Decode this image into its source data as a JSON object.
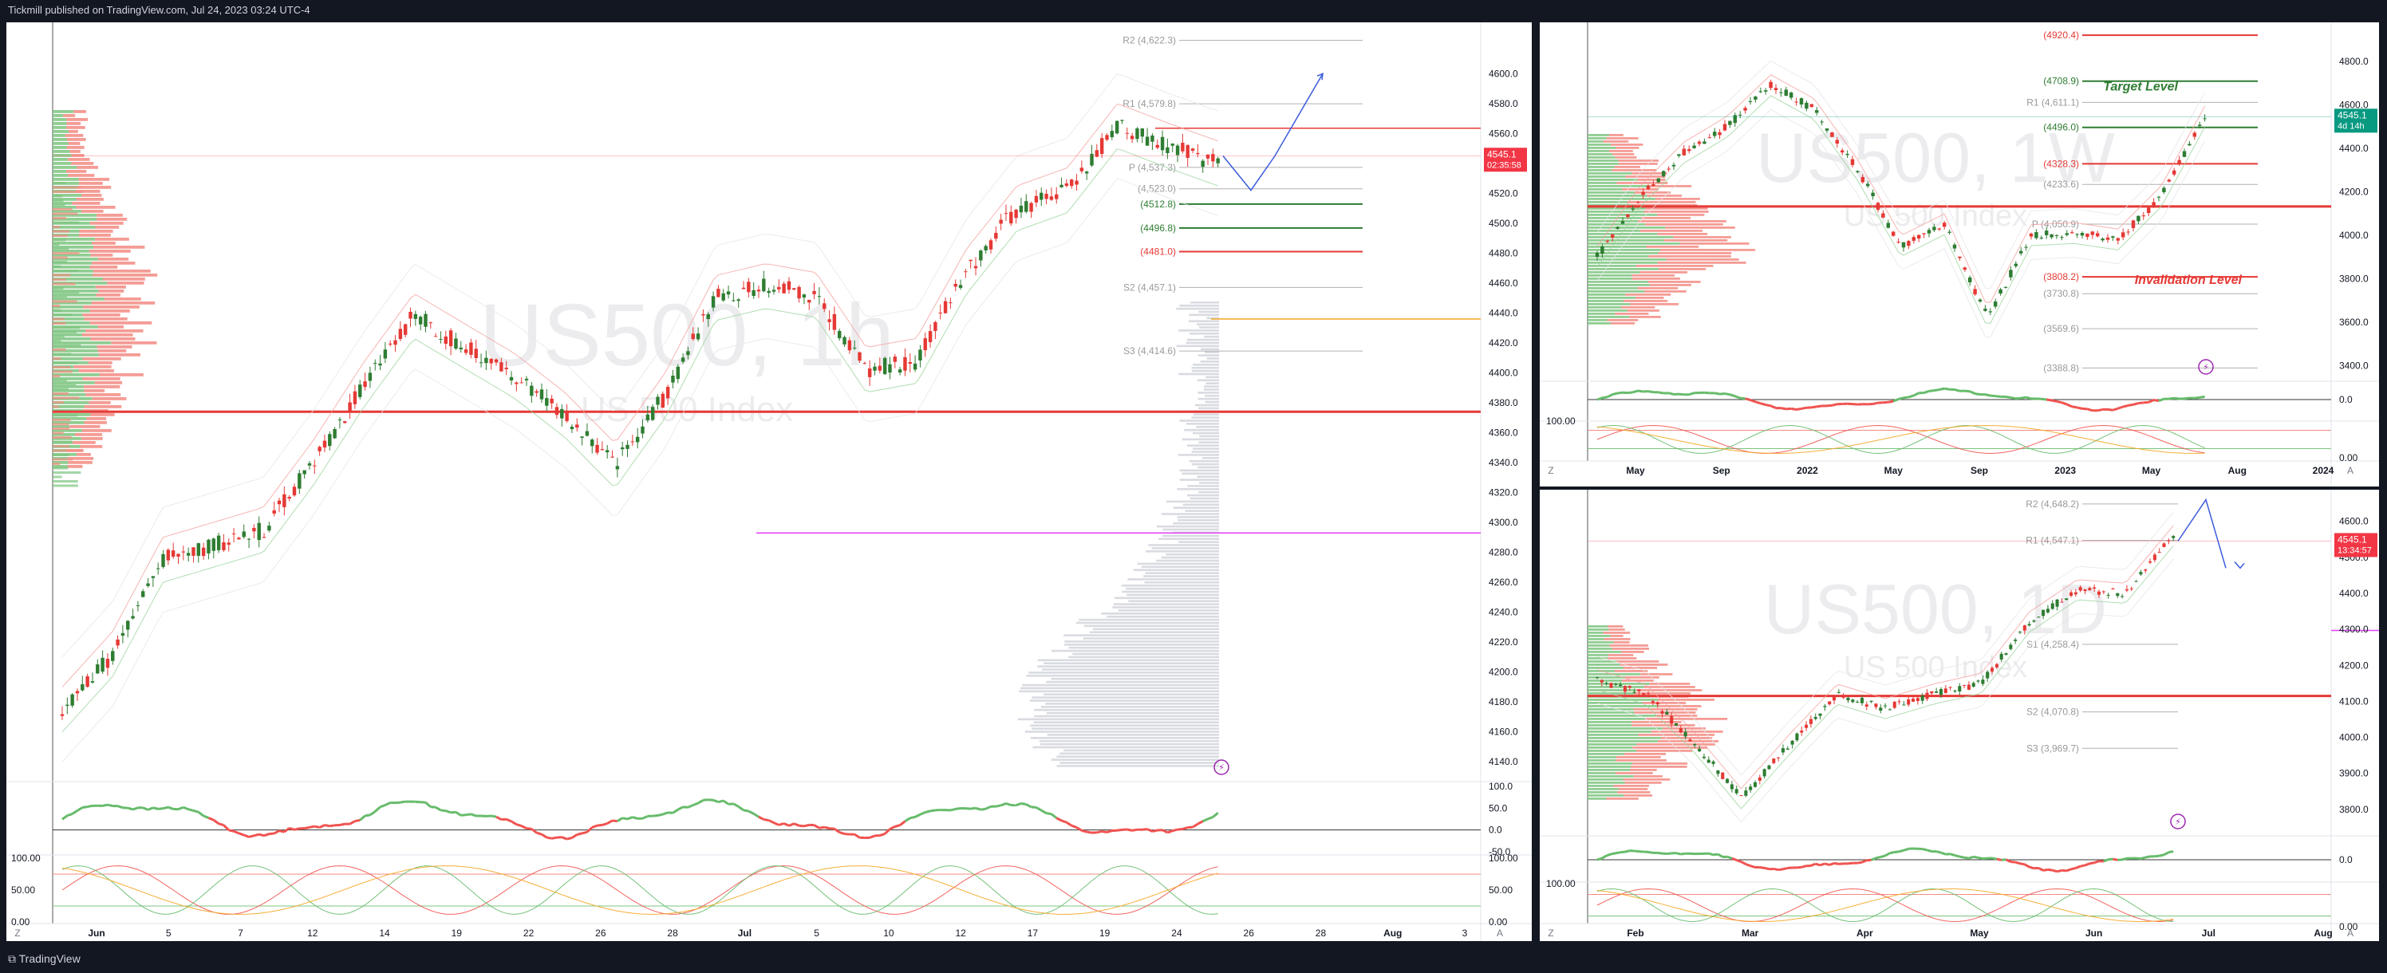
{
  "header": {
    "published": "Tickmill published on TradingView.com, Jul 24, 2023 03:24 UTC-4"
  },
  "footer": {
    "brand": "TradingView"
  },
  "colors": {
    "bull": "#2e7d32",
    "bear": "#e53935",
    "pivot_line": "#b0b0b0",
    "support": "#2e7d32",
    "resistance": "#e53935",
    "projection": "#3b5bdb",
    "orange": "#f5a623",
    "magenta": "#e040fb",
    "osc_green": "#66bb6a",
    "osc_red": "#ef5350"
  },
  "charts": [
    {
      "id": "h1",
      "watermark": {
        "symbol": "US500, 1h",
        "name": "US 500 Index"
      },
      "price_axis": {
        "ticks": [
          "4600.0",
          "4580.0",
          "4560.0",
          "4540.0",
          "4520.0",
          "4500.0",
          "4480.0",
          "4460.0",
          "4440.0",
          "4420.0",
          "4400.0",
          "4380.0",
          "4360.0",
          "4340.0",
          "4320.0",
          "4300.0",
          "4280.0",
          "4260.0",
          "4240.0",
          "4220.0",
          "4200.0",
          "4180.0",
          "4160.0",
          "4140.0"
        ],
        "min": 4130,
        "max": 4630
      },
      "last_price": {
        "value": "4545.1",
        "countdown": "02:35:58"
      },
      "levels": [
        {
          "label": "R2 (4,622.3)",
          "value": 4622.3,
          "kind": "pivot"
        },
        {
          "label": "R1 (4,579.8)",
          "value": 4579.8,
          "kind": "pivot"
        },
        {
          "label": "P (4,537.3)",
          "value": 4537.3,
          "kind": "pivot"
        },
        {
          "label": "(4,523.0)",
          "value": 4523.0,
          "kind": "pivot"
        },
        {
          "label": "(4512.8)",
          "value": 4512.8,
          "kind": "support"
        },
        {
          "label": "(4496.8)",
          "value": 4496.8,
          "kind": "support"
        },
        {
          "label": "(4481.0)",
          "value": 4481.0,
          "kind": "resistance"
        },
        {
          "label": "S2 (4,457.1)",
          "value": 4457.1,
          "kind": "pivot"
        },
        {
          "label": "S3 (4,414.6)",
          "value": 4414.6,
          "kind": "pivot"
        }
      ],
      "horizontal_lines": [
        {
          "value": 4563.5,
          "kind": "resistance"
        },
        {
          "value": 4374,
          "kind": "resistance-thick"
        },
        {
          "value": 4436,
          "kind": "orange"
        },
        {
          "value": 4293,
          "kind": "magenta"
        }
      ],
      "time_axis": [
        "Jun",
        "5",
        "7",
        "12",
        "14",
        "19",
        "22",
        "26",
        "28",
        "Jul",
        "5",
        "10",
        "12",
        "17",
        "19",
        "24",
        "26",
        "28",
        "Aug",
        "3"
      ],
      "chart_data": {
        "type": "line",
        "title": "US500, 1h",
        "x": [
          "Jun 1",
          "Jun 2",
          "Jun 5",
          "Jun 7",
          "Jun 9",
          "Jun 12",
          "Jun 14",
          "Jun 16",
          "Jun 19",
          "Jun 21",
          "Jun 22",
          "Jun 26",
          "Jun 28",
          "Jun 30",
          "Jul 3",
          "Jul 5",
          "Jul 7",
          "Jul 10",
          "Jul 12",
          "Jul 14",
          "Jul 17",
          "Jul 19",
          "Jul 20",
          "Jul 21"
        ],
        "y": [
          4175,
          4212,
          4275,
          4285,
          4295,
          4340,
          4392,
          4438,
          4418,
          4398,
          4372,
          4338,
          4385,
          4450,
          4458,
          4452,
          4402,
          4408,
          4468,
          4510,
          4522,
          4565,
          4552,
          4540
        ],
        "projection": [
          4545,
          4522,
          4545,
          4600
        ],
        "ylim": [
          4130,
          4630
        ]
      },
      "oscillator": {
        "ticks": [
          "100.0",
          "50.0",
          "0.0",
          "-50.0"
        ]
      },
      "oscillator2": {
        "ticks": [
          "100.00",
          "50.00",
          "0.00"
        ]
      },
      "axis_corner_left": "Z",
      "axis_corner_right": "A"
    },
    {
      "id": "w1",
      "watermark": {
        "symbol": "US500, 1W",
        "name": "US 500 Index"
      },
      "price_axis": {
        "ticks": [
          "4800.0",
          "4600.0",
          "4400.0",
          "4200.0",
          "4000.0",
          "3800.0",
          "3600.0",
          "3400.0"
        ],
        "min": 3350,
        "max": 4950
      },
      "last_price": {
        "value": "4545.1",
        "countdown": "4d 14h"
      },
      "levels": [
        {
          "label": "(4920.4)",
          "value": 4920.4,
          "kind": "resistance"
        },
        {
          "label": "(4708.9)",
          "value": 4708.9,
          "kind": "support"
        },
        {
          "label": "R1 (4,611.1)",
          "value": 4611.1,
          "kind": "pivot"
        },
        {
          "label": "(4496.0)",
          "value": 4496.0,
          "kind": "support"
        },
        {
          "label": "(4328.3)",
          "value": 4328.3,
          "kind": "resistance"
        },
        {
          "label": "(4233.6)",
          "value": 4233.6,
          "kind": "pivot"
        },
        {
          "label": "P (4,050.9)",
          "value": 4050.9,
          "kind": "pivot"
        },
        {
          "label": "(3808.2)",
          "value": 3808.2,
          "kind": "resistance"
        },
        {
          "label": "(3730.8)",
          "value": 3730.8,
          "kind": "pivot"
        },
        {
          "label": "(3569.6)",
          "value": 3569.6,
          "kind": "pivot"
        },
        {
          "label": "(3388.8)",
          "value": 3388.8,
          "kind": "pivot"
        }
      ],
      "annotations": [
        {
          "text": "Target Level",
          "value": 4680
        },
        {
          "text": "Invalidation Level",
          "value": 3790
        }
      ],
      "horizontal_lines": [
        {
          "value": 4132,
          "kind": "resistance-thick"
        }
      ],
      "time_axis": [
        "May",
        "Sep",
        "2022",
        "May",
        "Sep",
        "2023",
        "May",
        "Aug",
        "2024"
      ],
      "chart_data": {
        "type": "line",
        "title": "US500, 1W",
        "x": [
          "2021-03",
          "2021-05",
          "2021-07",
          "2021-09",
          "2021-11",
          "2022-01",
          "2022-03",
          "2022-05",
          "2022-07",
          "2022-09",
          "2022-11",
          "2023-01",
          "2023-03",
          "2023-05",
          "2023-07"
        ],
        "y": [
          3900,
          4180,
          4380,
          4500,
          4690,
          4580,
          4300,
          3950,
          4050,
          3620,
          4000,
          4010,
          3980,
          4180,
          4545
        ],
        "ylim": [
          3350,
          4950
        ]
      },
      "oscillator": {
        "ticks": [
          "0.0"
        ]
      },
      "oscillator2": {
        "ticks": [
          "100.00",
          "0.00"
        ]
      },
      "axis_corner_left": "Z",
      "axis_corner_right": "A"
    },
    {
      "id": "d1",
      "watermark": {
        "symbol": "US500, 1D",
        "name": "US 500 Index"
      },
      "price_axis": {
        "ticks": [
          "4600.0",
          "4500.0",
          "4400.0",
          "4300.0",
          "4200.0",
          "4100.0",
          "4000.0",
          "3900.0",
          "3800.0"
        ],
        "min": 3740,
        "max": 4670
      },
      "last_price": {
        "value": "4545.1",
        "countdown": "13:34:57"
      },
      "levels": [
        {
          "label": "R2 (4,648.2)",
          "value": 4648.2,
          "kind": "pivot"
        },
        {
          "label": "R1 (4,547.1)",
          "value": 4547.1,
          "kind": "pivot"
        },
        {
          "label": "S1 (4,258.4)",
          "value": 4258.4,
          "kind": "pivot"
        },
        {
          "label": "S2 (4,070.8)",
          "value": 4070.8,
          "kind": "pivot"
        },
        {
          "label": "S3 (3,969.7)",
          "value": 3969.7,
          "kind": "pivot"
        }
      ],
      "horizontal_lines": [
        {
          "value": 4115,
          "kind": "resistance-thick"
        },
        {
          "value": 4297,
          "kind": "magenta"
        }
      ],
      "time_axis": [
        "Feb",
        "Mar",
        "Apr",
        "May",
        "Jun",
        "Jul",
        "Aug"
      ],
      "chart_data": {
        "type": "line",
        "title": "US500, 1D",
        "x": [
          "Feb 1",
          "Feb 15",
          "Mar 1",
          "Mar 13",
          "Mar 25",
          "Apr 10",
          "Apr 25",
          "May 10",
          "May 25",
          "Jun 8",
          "Jun 20",
          "Jul 5",
          "Jul 20"
        ],
        "y": [
          4160,
          4120,
          3990,
          3830,
          3980,
          4120,
          4080,
          4120,
          4150,
          4320,
          4410,
          4400,
          4560
        ],
        "projection": [
          4545,
          4660,
          4470
        ],
        "ylim": [
          3740,
          4670
        ]
      },
      "oscillator": {
        "ticks": [
          "0.0"
        ]
      },
      "oscillator2": {
        "ticks": [
          "100.00",
          "0.00"
        ]
      },
      "axis_corner_left": "Z",
      "axis_corner_right": "A"
    }
  ]
}
